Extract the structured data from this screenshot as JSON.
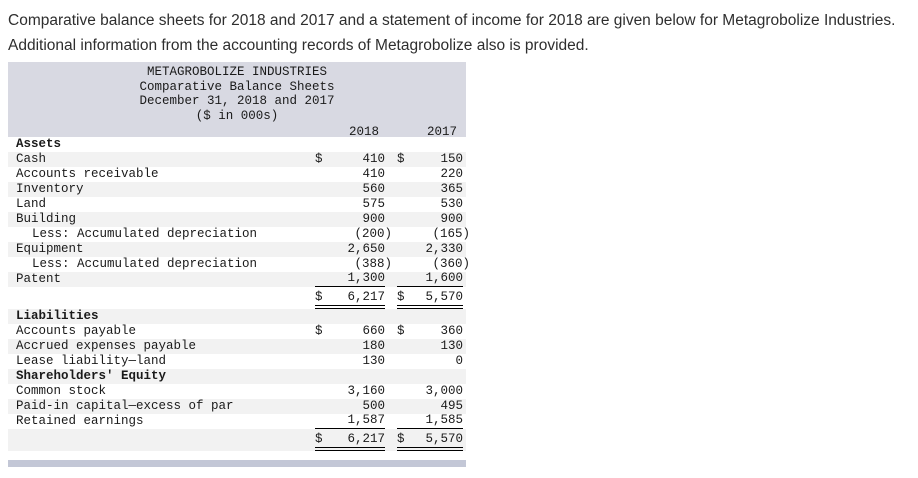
{
  "intro": {
    "line1": "Comparative balance sheets for 2018 and 2017 and a statement of income for 2018 are given below for Metagrobolize Industries.",
    "line2": "Additional information from the accounting records of Metagrobolize also is provided."
  },
  "sheet": {
    "company": "METAGROBOLIZE INDUSTRIES",
    "title": "Comparative Balance Sheets",
    "date_line": "December 31, 2018 and 2017",
    "units": "($ in 000s)",
    "columns": [
      "2018",
      "2017"
    ],
    "rows": [
      {
        "label": "Assets",
        "bold": true,
        "d18": "",
        "v18": "",
        "d17": "",
        "v17": ""
      },
      {
        "label": "Cash",
        "d18": "$",
        "v18": "410",
        "d17": "$",
        "v17": "150"
      },
      {
        "label": "Accounts receivable",
        "v18": "410",
        "v17": "220"
      },
      {
        "label": "Inventory",
        "v18": "560",
        "v17": "365"
      },
      {
        "label": "Land",
        "v18": "575",
        "v17": "530"
      },
      {
        "label": "Building",
        "v18": "900",
        "v17": "900"
      },
      {
        "label": "Less: Accumulated depreciation",
        "indent": true,
        "v18": "(200)",
        "v17": "(165)"
      },
      {
        "label": "Equipment",
        "v18": "2,650",
        "v17": "2,330"
      },
      {
        "label": "Less: Accumulated depreciation",
        "indent": true,
        "v18": "(388)",
        "v17": "(360)"
      },
      {
        "label": "Patent",
        "v18": "1,300",
        "v17": "1,600",
        "rule": "single"
      },
      {
        "label": "",
        "total": true,
        "d18": "$",
        "v18": "6,217",
        "d17": "$",
        "v17": "5,570",
        "rule": "double"
      },
      {
        "label": "Liabilities",
        "bold": true
      },
      {
        "label": "Accounts payable",
        "d18": "$",
        "v18": "660",
        "d17": "$",
        "v17": "360"
      },
      {
        "label": "Accrued expenses payable",
        "v18": "180",
        "v17": "130"
      },
      {
        "label": "Lease liability—land",
        "v18": "130",
        "v17": "0"
      },
      {
        "label": "Shareholders' Equity",
        "bold": true
      },
      {
        "label": "Common stock",
        "v18": "3,160",
        "v17": "3,000"
      },
      {
        "label": "Paid-in capital—excess of par",
        "v18": "500",
        "v17": "495"
      },
      {
        "label": "Retained earnings",
        "v18": "1,587",
        "v17": "1,585",
        "rule": "single"
      },
      {
        "label": "",
        "total": true,
        "d18": "$",
        "v18": "6,217",
        "d17": "$",
        "v17": "5,570",
        "rule": "double"
      }
    ]
  },
  "colors": {
    "header_bg": "#d8d9e2",
    "row_alt_bg": "#f2f2f2",
    "divider_bar": "#c3c7d6",
    "table_text": "#1a1a1a",
    "intro_text": "#2e2e2e"
  }
}
